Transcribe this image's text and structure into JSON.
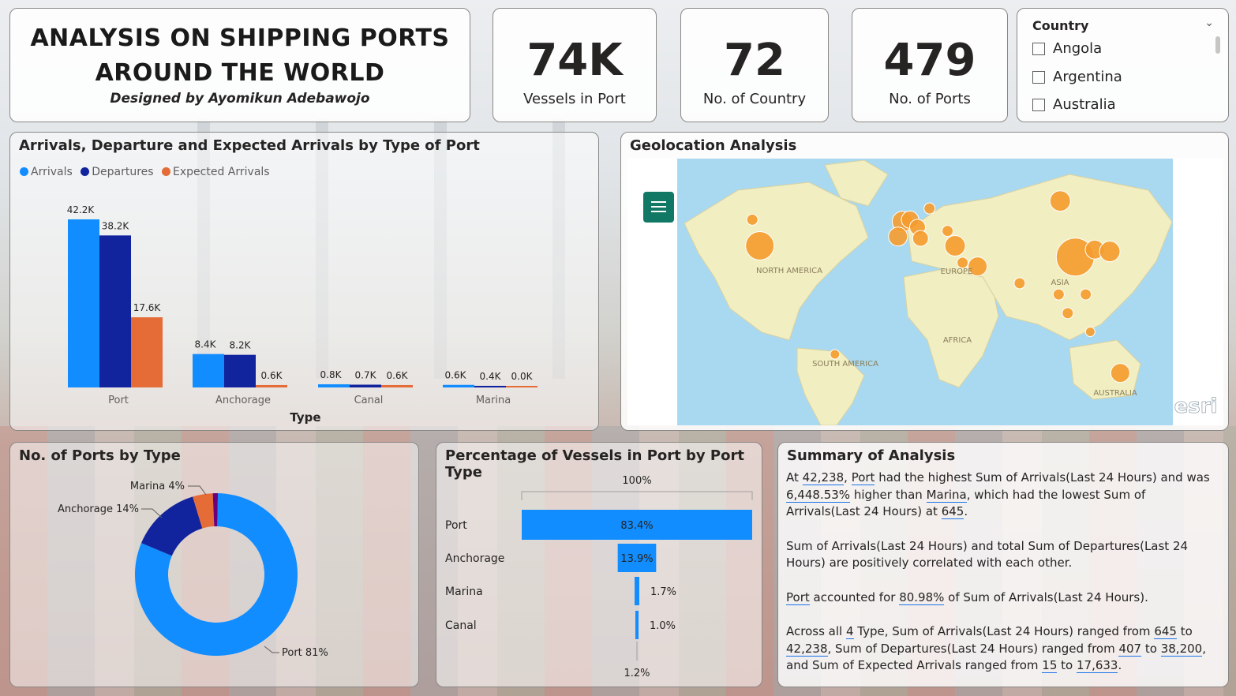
{
  "title": {
    "line1": "ANALYSIS ON SHIPPING PORTS",
    "line2": "AROUND THE WORLD",
    "subtitle": "Designed by Ayomikun Adebawojo"
  },
  "kpis": [
    {
      "value": "74K",
      "label": "Vessels in Port"
    },
    {
      "value": "72",
      "label": "No. of Country"
    },
    {
      "value": "479",
      "label": "No. of Ports"
    }
  ],
  "slicer": {
    "header": "Country",
    "options": [
      "Angola",
      "Argentina",
      "Australia"
    ]
  },
  "bar_card": {
    "title": "Arrivals, Departure and Expected Arrivals by Type of Port",
    "xlabel": "Type"
  },
  "map_card": {
    "title": "Geolocation Analysis",
    "labels": [
      "NORTH AMERICA",
      "EUROPE",
      "ASIA",
      "AFRICA",
      "SOUTH AMERICA",
      "AUSTRALIA"
    ],
    "watermark": "esri",
    "menu_icon": "hamburger-icon"
  },
  "donut_card": {
    "title": "No. of Ports by Type"
  },
  "funnel_card": {
    "title": "Percentage of Vessels in Port by Port Type",
    "top_label": "100%",
    "bottom_label": "1.2%"
  },
  "summary": {
    "title": "Summary of Analysis",
    "p1": {
      "a": "At ",
      "v1": "42,238",
      "b": ", ",
      "v2": "Port",
      "c": " had the highest Sum of Arrivals(Last 24 Hours) and was ",
      "v3": "6,448.53%",
      "d": " higher than ",
      "v4": "Marina",
      "e": ", which had the lowest Sum of Arrivals(Last 24 Hours) at ",
      "v5": "645",
      "f": "."
    },
    "p2": "Sum of Arrivals(Last 24 Hours) and total Sum of Departures(Last 24 Hours) are positively correlated with each other.",
    "p3": {
      "v1": "Port",
      "a": " accounted for ",
      "v2": "80.98%",
      "b": " of Sum of Arrivals(Last 24 Hours)."
    },
    "p4": {
      "a": "Across all ",
      "v1": "4",
      "b": " Type, Sum of Arrivals(Last 24 Hours) ranged from ",
      "v2": "645",
      "c": " to ",
      "v3": "42,238",
      "d": ", Sum of Departures(Last 24 Hours) ranged from ",
      "v4": "407",
      "e": " to ",
      "v5": "38,200",
      "f": ", and Sum of Expected Arrivals ranged from ",
      "v6": "15",
      "g": " to ",
      "v7": "17,633",
      "h": "."
    }
  },
  "chart_data": [
    {
      "type": "bar",
      "title": "Arrivals, Departure and Expected Arrivals by Type of Port",
      "xlabel": "Type",
      "ylabel": "",
      "categories": [
        "Port",
        "Anchorage",
        "Canal",
        "Marina"
      ],
      "series": [
        {
          "name": "Arrivals",
          "color": "#118dff",
          "values": [
            42238,
            8400,
            800,
            645
          ],
          "labels": [
            "42.2K",
            "8.4K",
            "0.8K",
            "0.6K"
          ]
        },
        {
          "name": "Departures",
          "color": "#12239e",
          "values": [
            38200,
            8200,
            700,
            407
          ],
          "labels": [
            "38.2K",
            "8.2K",
            "0.7K",
            "0.4K"
          ]
        },
        {
          "name": "Expected Arrivals",
          "color": "#e66c37",
          "values": [
            17633,
            600,
            600,
            15
          ],
          "labels": [
            "17.6K",
            "0.6K",
            "0.6K",
            "0.0K"
          ]
        }
      ],
      "legend": "top-left",
      "grid": false
    },
    {
      "type": "pie",
      "title": "No. of Ports by Type",
      "donut": true,
      "slices": [
        {
          "name": "Port",
          "value": 81,
          "label": "Port 81%",
          "color": "#118dff"
        },
        {
          "name": "Anchorage",
          "value": 14,
          "label": "Anchorage 14%",
          "color": "#12239e"
        },
        {
          "name": "Marina",
          "value": 4,
          "label": "Marina 4%",
          "color": "#e66c37"
        },
        {
          "name": "Canal",
          "value": 1,
          "label": "",
          "color": "#6b007b"
        }
      ]
    },
    {
      "type": "bar",
      "title": "Percentage of Vessels in Port by Port Type",
      "orientation": "funnel",
      "categories": [
        "Port",
        "Anchorage",
        "Marina",
        "Canal"
      ],
      "values": [
        83.4,
        13.9,
        1.7,
        1.0
      ],
      "labels": [
        "83.4%",
        "13.9%",
        "1.7%",
        "1.0%"
      ],
      "color": "#118dff"
    },
    {
      "type": "scatter",
      "title": "Geolocation Analysis",
      "note_units": "longitude/latitude",
      "points": [
        {
          "lon": -95,
          "lat": 38,
          "size": 18
        },
        {
          "lon": -100,
          "lat": 52,
          "size": 7
        },
        {
          "lon": 105,
          "lat": 62,
          "size": 13
        },
        {
          "lon": 115,
          "lat": 32,
          "size": 24
        },
        {
          "lon": 128,
          "lat": 36,
          "size": 12
        },
        {
          "lon": 138,
          "lat": 35,
          "size": 13
        },
        {
          "lon": 0,
          "lat": 51,
          "size": 13
        },
        {
          "lon": 5,
          "lat": 52,
          "size": 11
        },
        {
          "lon": 10,
          "lat": 48,
          "size": 10
        },
        {
          "lon": -3,
          "lat": 43,
          "size": 12
        },
        {
          "lon": 12,
          "lat": 42,
          "size": 10
        },
        {
          "lon": 18,
          "lat": 58,
          "size": 7
        },
        {
          "lon": 30,
          "lat": 46,
          "size": 7
        },
        {
          "lon": 35,
          "lat": 38,
          "size": 13
        },
        {
          "lon": 50,
          "lat": 27,
          "size": 12
        },
        {
          "lon": 40,
          "lat": 29,
          "size": 7
        },
        {
          "lon": 78,
          "lat": 18,
          "size": 7
        },
        {
          "lon": 104,
          "lat": 12,
          "size": 7
        },
        {
          "lon": 110,
          "lat": 2,
          "size": 7
        },
        {
          "lon": 122,
          "lat": 12,
          "size": 7
        },
        {
          "lon": 125,
          "lat": -8,
          "size": 6
        },
        {
          "lon": 145,
          "lat": -30,
          "size": 12
        },
        {
          "lon": -45,
          "lat": -20,
          "size": 6
        }
      ]
    }
  ]
}
